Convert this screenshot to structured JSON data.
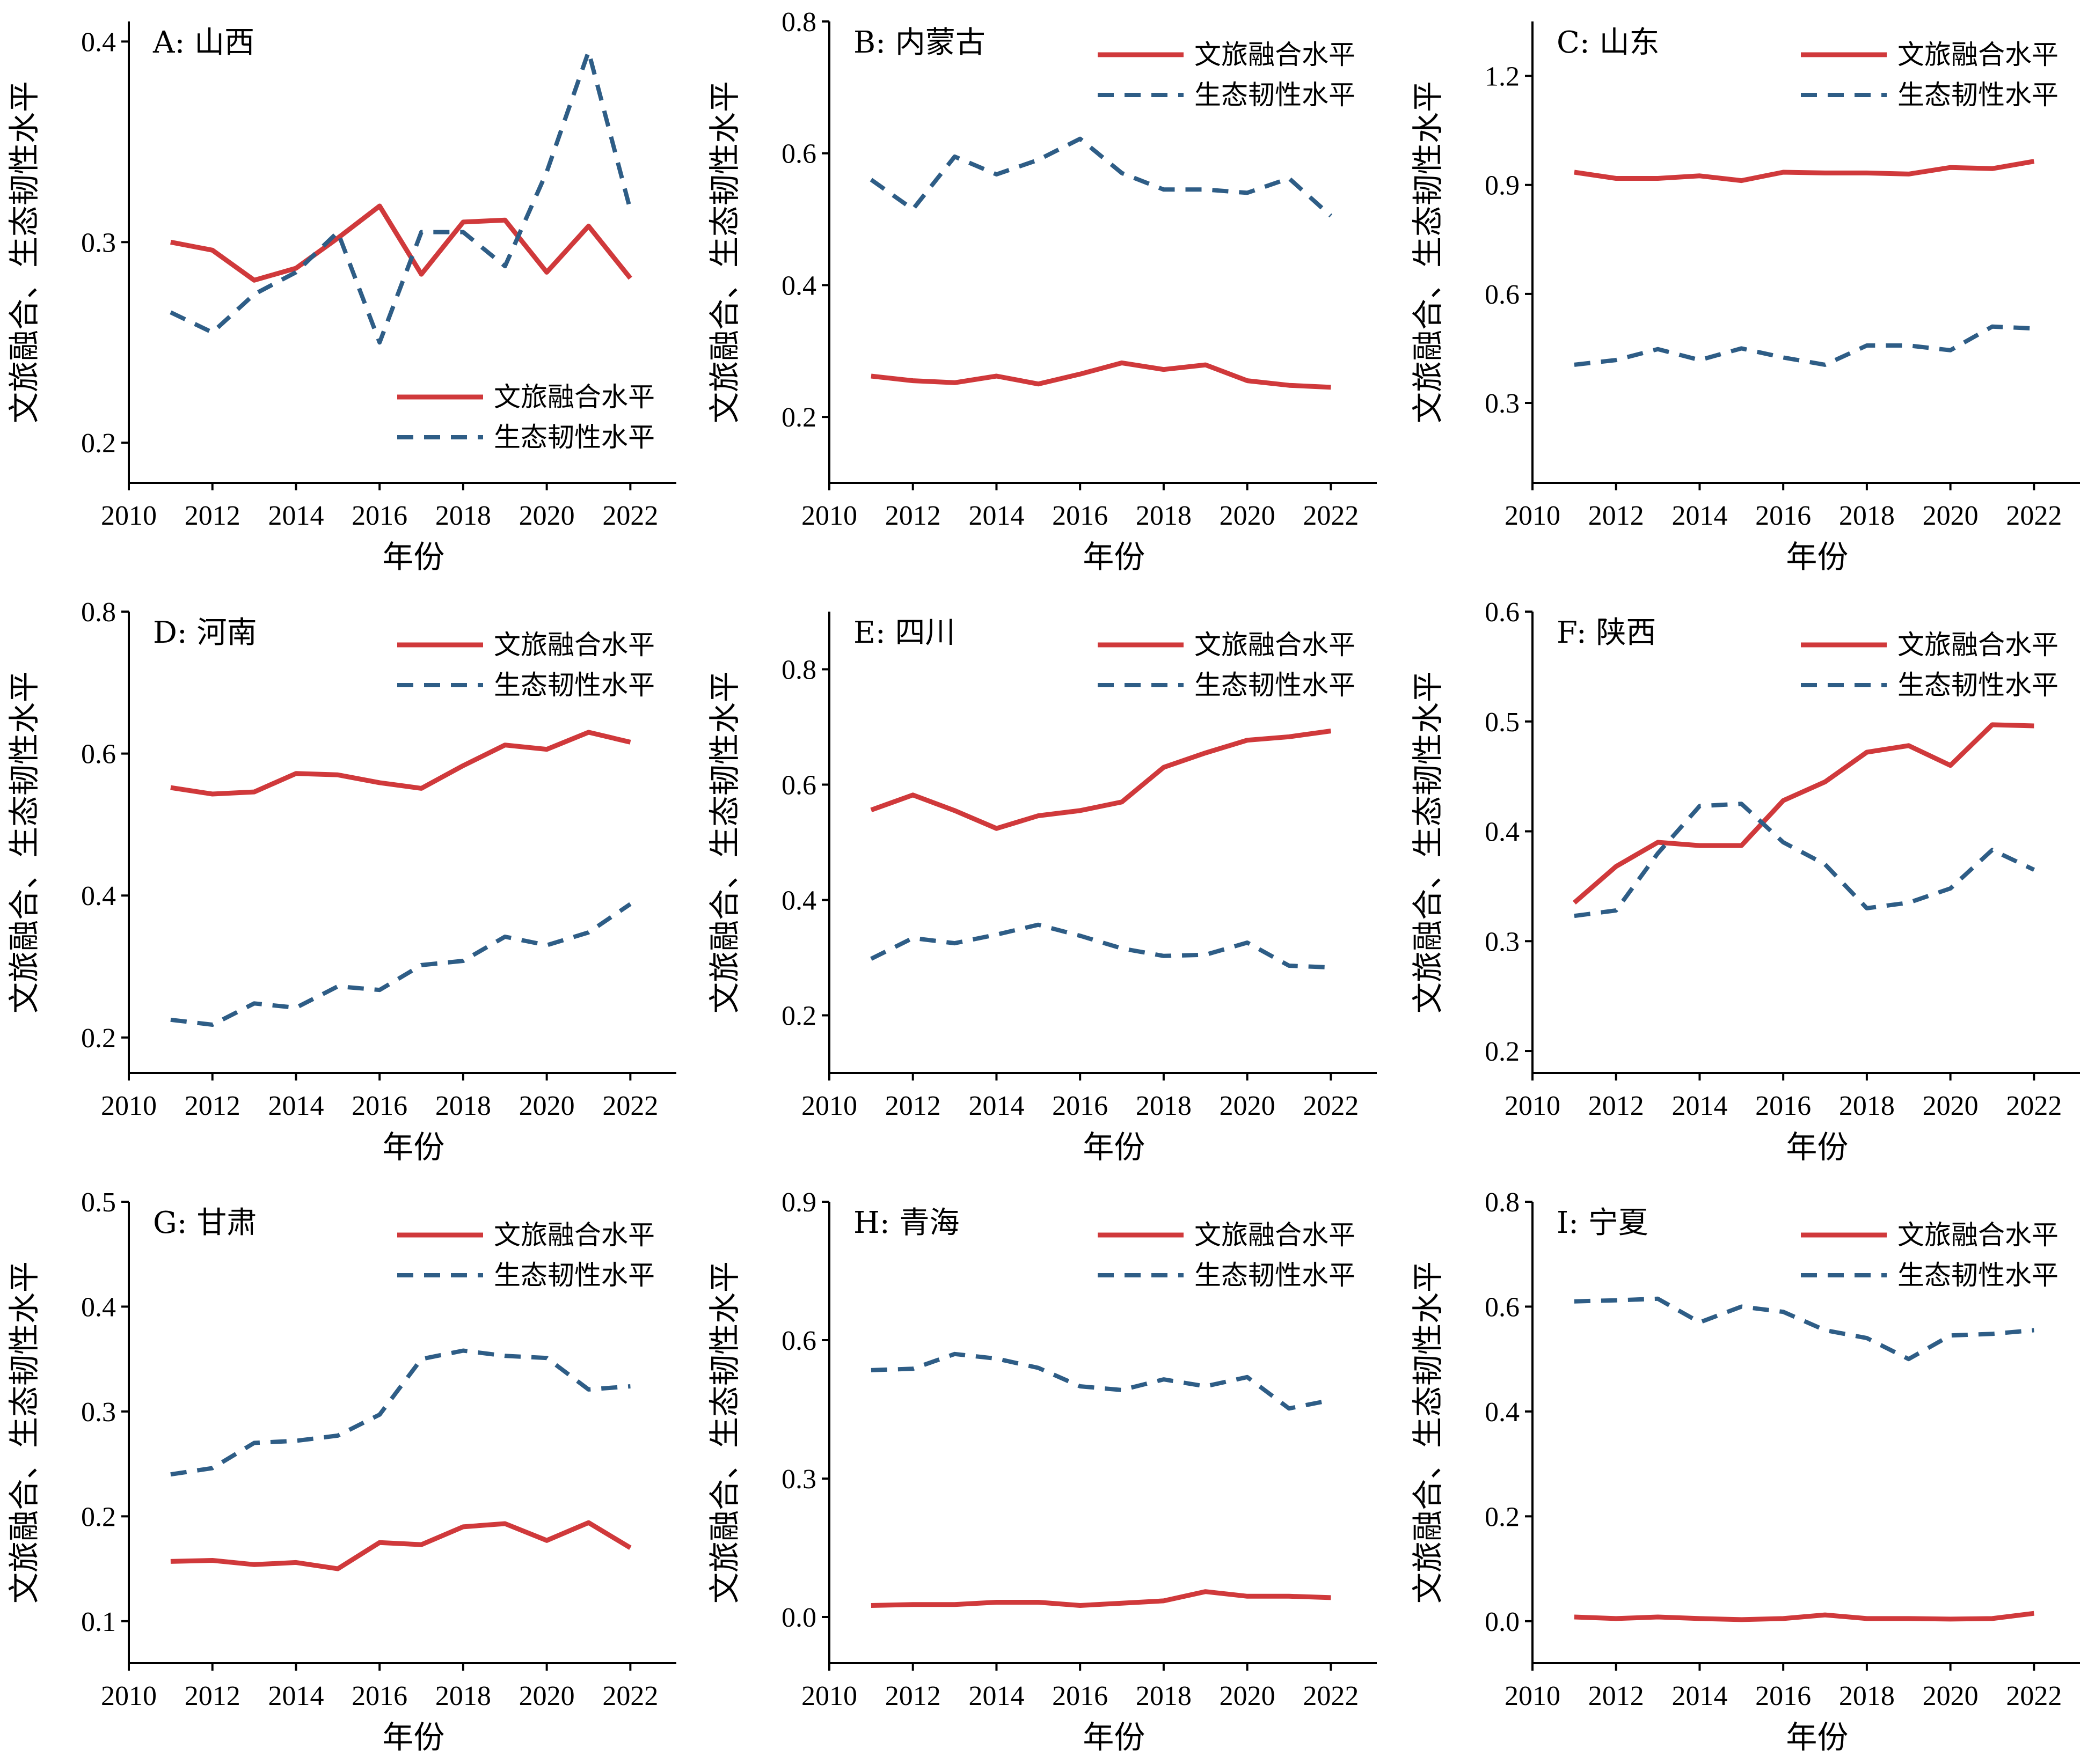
{
  "colors": {
    "series_1": "#d0393b",
    "series_2": "#2e5d86"
  },
  "series_names": [
    "文旅融合水平",
    "生态韧性水平"
  ],
  "xlabel": "年份",
  "ylabel": "文旅融合、生态韧性水平",
  "chart_data": [
    {
      "type": "line",
      "title": "A: 山西",
      "xlim": [
        2010,
        2023.1
      ],
      "xticks": [
        2010,
        2012,
        2014,
        2016,
        2018,
        2020,
        2022
      ],
      "ylim": [
        0.18,
        0.41
      ],
      "yticks": [
        0.2,
        0.3,
        0.4
      ],
      "legend": "bottom-right",
      "x": [
        2011,
        2012,
        2013,
        2014,
        2015,
        2016,
        2017,
        2018,
        2019,
        2020,
        2021,
        2022
      ],
      "series": [
        {
          "name": "文旅融合水平",
          "values": [
            0.3,
            0.296,
            0.281,
            0.287,
            0.302,
            0.318,
            0.284,
            0.31,
            0.311,
            0.285,
            0.308,
            0.282
          ]
        },
        {
          "name": "生态韧性水平",
          "values": [
            0.265,
            0.255,
            0.274,
            0.285,
            0.305,
            0.25,
            0.305,
            0.305,
            0.288,
            0.335,
            0.395,
            0.316
          ]
        }
      ]
    },
    {
      "type": "line",
      "title": "B: 内蒙古",
      "xlim": [
        2010,
        2023.1
      ],
      "xticks": [
        2010,
        2012,
        2014,
        2016,
        2018,
        2020,
        2022
      ],
      "ylim": [
        0.1,
        0.8
      ],
      "yticks": [
        0.2,
        0.4,
        0.6,
        0.8
      ],
      "legend": "top-right",
      "x": [
        2011,
        2012,
        2013,
        2014,
        2015,
        2016,
        2017,
        2018,
        2019,
        2020,
        2021,
        2022
      ],
      "series": [
        {
          "name": "文旅融合水平",
          "values": [
            0.262,
            0.255,
            0.252,
            0.262,
            0.25,
            0.265,
            0.282,
            0.272,
            0.279,
            0.255,
            0.248,
            0.245
          ]
        },
        {
          "name": "生态韧性水平",
          "values": [
            0.56,
            0.515,
            0.595,
            0.568,
            0.59,
            0.622,
            0.57,
            0.545,
            0.545,
            0.54,
            0.562,
            0.505
          ]
        }
      ]
    },
    {
      "type": "line",
      "title": "C: 山东",
      "xlim": [
        2010,
        2023.1
      ],
      "xticks": [
        2010,
        2012,
        2014,
        2016,
        2018,
        2020,
        2022
      ],
      "ylim": [
        0.08,
        1.35
      ],
      "yticks": [
        0.3,
        0.6,
        0.9,
        1.2
      ],
      "legend": "top-right",
      "x": [
        2011,
        2012,
        2013,
        2014,
        2015,
        2016,
        2017,
        2018,
        2019,
        2020,
        2021,
        2022
      ],
      "series": [
        {
          "name": "文旅融合水平",
          "values": [
            0.935,
            0.918,
            0.918,
            0.925,
            0.912,
            0.935,
            0.933,
            0.933,
            0.93,
            0.948,
            0.945,
            0.965
          ]
        },
        {
          "name": "生态韧性水平",
          "values": [
            0.405,
            0.418,
            0.448,
            0.418,
            0.45,
            0.425,
            0.405,
            0.458,
            0.458,
            0.445,
            0.51,
            0.505
          ]
        }
      ]
    },
    {
      "type": "line",
      "title": "D: 河南",
      "xlim": [
        2010,
        2023.1
      ],
      "xticks": [
        2010,
        2012,
        2014,
        2016,
        2018,
        2020,
        2022
      ],
      "ylim": [
        0.15,
        0.8
      ],
      "yticks": [
        0.2,
        0.4,
        0.6,
        0.8
      ],
      "legend": "top-right",
      "x": [
        2011,
        2012,
        2013,
        2014,
        2015,
        2016,
        2017,
        2018,
        2019,
        2020,
        2021,
        2022
      ],
      "series": [
        {
          "name": "文旅融合水平",
          "values": [
            0.552,
            0.543,
            0.546,
            0.572,
            0.57,
            0.559,
            0.551,
            0.583,
            0.612,
            0.606,
            0.63,
            0.616
          ]
        },
        {
          "name": "生态韧性水平",
          "values": [
            0.225,
            0.218,
            0.248,
            0.242,
            0.272,
            0.267,
            0.302,
            0.308,
            0.342,
            0.33,
            0.348,
            0.388
          ]
        }
      ]
    },
    {
      "type": "line",
      "title": "E: 四川",
      "xlim": [
        2010,
        2023.1
      ],
      "xticks": [
        2010,
        2012,
        2014,
        2016,
        2018,
        2020,
        2022
      ],
      "ylim": [
        0.1,
        0.9
      ],
      "yticks": [
        0.2,
        0.4,
        0.6,
        0.8
      ],
      "legend": "top-right",
      "x": [
        2011,
        2012,
        2013,
        2014,
        2015,
        2016,
        2017,
        2018,
        2019,
        2020,
        2021,
        2022
      ],
      "series": [
        {
          "name": "文旅融合水平",
          "values": [
            0.556,
            0.582,
            0.555,
            0.524,
            0.546,
            0.555,
            0.57,
            0.63,
            0.655,
            0.677,
            0.683,
            0.693
          ]
        },
        {
          "name": "生态韧性水平",
          "values": [
            0.298,
            0.334,
            0.325,
            0.34,
            0.357,
            0.338,
            0.316,
            0.303,
            0.305,
            0.326,
            0.286,
            0.283
          ]
        }
      ]
    },
    {
      "type": "line",
      "title": "F: 陕西",
      "xlim": [
        2010,
        2023.1
      ],
      "xticks": [
        2010,
        2012,
        2014,
        2016,
        2018,
        2020,
        2022
      ],
      "ylim": [
        0.18,
        0.6
      ],
      "yticks": [
        0.2,
        0.3,
        0.4,
        0.5,
        0.6
      ],
      "legend": "top-right",
      "x": [
        2011,
        2012,
        2013,
        2014,
        2015,
        2016,
        2017,
        2018,
        2019,
        2020,
        2021,
        2022
      ],
      "series": [
        {
          "name": "文旅融合水平",
          "values": [
            0.335,
            0.368,
            0.39,
            0.387,
            0.387,
            0.428,
            0.445,
            0.472,
            0.478,
            0.46,
            0.497,
            0.496
          ]
        },
        {
          "name": "生态韧性水平",
          "values": [
            0.323,
            0.328,
            0.38,
            0.423,
            0.425,
            0.39,
            0.37,
            0.33,
            0.335,
            0.348,
            0.383,
            0.365
          ]
        }
      ]
    },
    {
      "type": "line",
      "title": "G: 甘肃",
      "xlim": [
        2010,
        2023.1
      ],
      "xticks": [
        2010,
        2012,
        2014,
        2016,
        2018,
        2020,
        2022
      ],
      "ylim": [
        0.06,
        0.5
      ],
      "yticks": [
        0.1,
        0.2,
        0.3,
        0.4,
        0.5
      ],
      "legend": "top-right",
      "x": [
        2011,
        2012,
        2013,
        2014,
        2015,
        2016,
        2017,
        2018,
        2019,
        2020,
        2021,
        2022
      ],
      "series": [
        {
          "name": "文旅融合水平",
          "values": [
            0.157,
            0.158,
            0.154,
            0.156,
            0.15,
            0.175,
            0.173,
            0.19,
            0.193,
            0.177,
            0.194,
            0.17
          ]
        },
        {
          "name": "生态韧性水平",
          "values": [
            0.24,
            0.246,
            0.27,
            0.272,
            0.277,
            0.297,
            0.35,
            0.358,
            0.353,
            0.351,
            0.321,
            0.324
          ]
        }
      ]
    },
    {
      "type": "line",
      "title": "H: 青海",
      "xlim": [
        2010,
        2023.1
      ],
      "xticks": [
        2010,
        2012,
        2014,
        2016,
        2018,
        2020,
        2022
      ],
      "ylim": [
        -0.1,
        0.9
      ],
      "yticks": [
        0.0,
        0.3,
        0.6,
        0.9
      ],
      "legend": "top-right",
      "x": [
        2011,
        2012,
        2013,
        2014,
        2015,
        2016,
        2017,
        2018,
        2019,
        2020,
        2021,
        2022
      ],
      "series": [
        {
          "name": "文旅融合水平",
          "values": [
            0.025,
            0.027,
            0.027,
            0.032,
            0.032,
            0.025,
            0.03,
            0.035,
            0.055,
            0.045,
            0.045,
            0.042
          ]
        },
        {
          "name": "生态韧性水平",
          "values": [
            0.535,
            0.538,
            0.57,
            0.56,
            0.54,
            0.5,
            0.492,
            0.515,
            0.5,
            0.52,
            0.452,
            0.47
          ]
        }
      ]
    },
    {
      "type": "line",
      "title": "I: 宁夏",
      "xlim": [
        2010,
        2023.1
      ],
      "xticks": [
        2010,
        2012,
        2014,
        2016,
        2018,
        2020,
        2022
      ],
      "ylim": [
        -0.08,
        0.8
      ],
      "yticks": [
        0.0,
        0.2,
        0.4,
        0.6,
        0.8
      ],
      "legend": "top-right",
      "x": [
        2011,
        2012,
        2013,
        2014,
        2015,
        2016,
        2017,
        2018,
        2019,
        2020,
        2021,
        2022
      ],
      "series": [
        {
          "name": "文旅融合水平",
          "values": [
            0.008,
            0.005,
            0.008,
            0.005,
            0.003,
            0.005,
            0.012,
            0.005,
            0.005,
            0.004,
            0.005,
            0.015
          ]
        },
        {
          "name": "生态韧性水平",
          "values": [
            0.61,
            0.612,
            0.615,
            0.57,
            0.6,
            0.59,
            0.555,
            0.54,
            0.5,
            0.545,
            0.548,
            0.555
          ]
        }
      ]
    }
  ]
}
